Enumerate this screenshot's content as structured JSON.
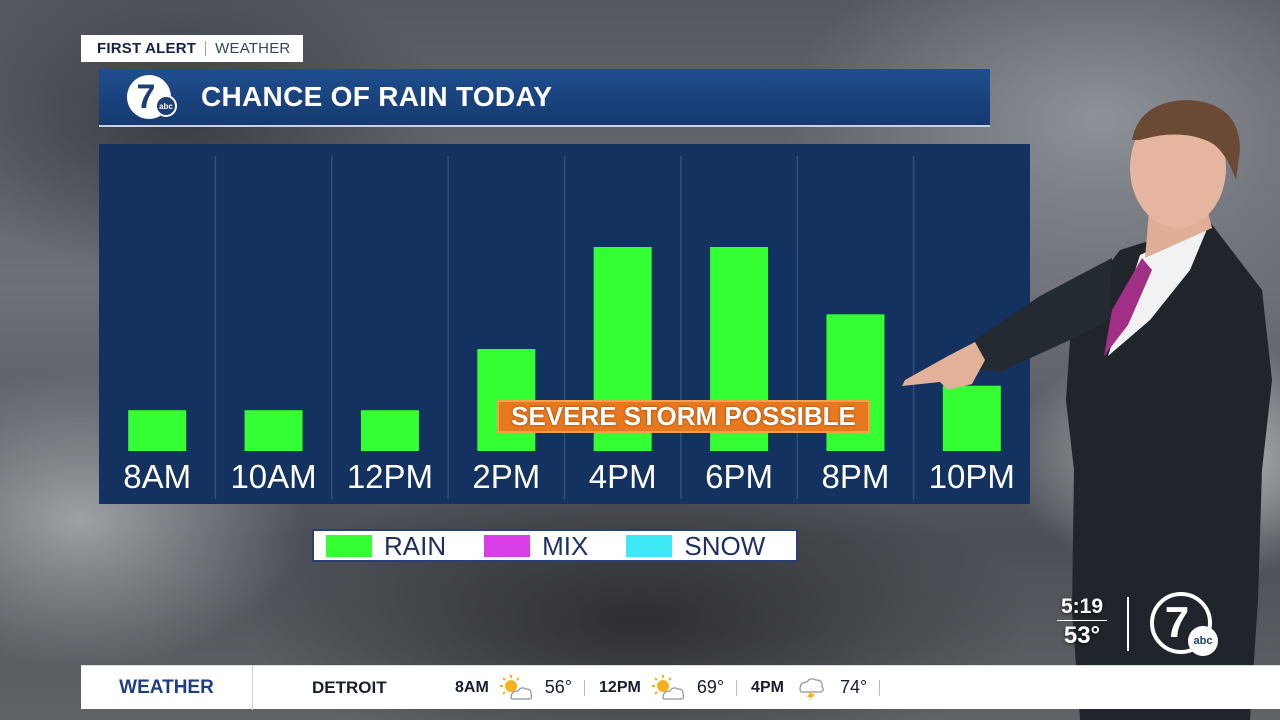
{
  "brand_tag": {
    "left": "FIRST ALERT",
    "right": "WEATHER"
  },
  "title": "CHANCE OF RAIN TODAY",
  "logo": {
    "number": "7",
    "network": "abc"
  },
  "chart_data": {
    "type": "bar",
    "categories": [
      "8AM",
      "10AM",
      "12PM",
      "2PM",
      "4PM",
      "6PM",
      "8PM",
      "10PM"
    ],
    "series": [
      {
        "name": "RAIN",
        "values": [
          20,
          20,
          20,
          50,
          100,
          100,
          67,
          32
        ]
      }
    ],
    "ylim": [
      0,
      100
    ],
    "bar_color": "#33ff33",
    "grid": "vertical separators"
  },
  "annotation": "SEVERE STORM POSSIBLE",
  "legend": [
    {
      "label": "RAIN",
      "color": "#33ff33"
    },
    {
      "label": "MIX",
      "color": "#d93ee6"
    },
    {
      "label": "SNOW",
      "color": "#3ee8f5"
    }
  ],
  "clock": {
    "time": "5:19",
    "temp": "53°"
  },
  "ticker": {
    "label": "WEATHER",
    "city": "DETROIT",
    "slots": [
      {
        "time": "8AM",
        "icon": "partly-sunny-icon",
        "temp": "56°"
      },
      {
        "time": "12PM",
        "icon": "partly-sunny-icon",
        "temp": "69°"
      },
      {
        "time": "4PM",
        "icon": "thunderstorm-icon",
        "temp": "74°"
      }
    ]
  },
  "colors": {
    "panel": "#14325f",
    "title_bar": "#1f4e8e",
    "annotation": "#e8781e"
  }
}
